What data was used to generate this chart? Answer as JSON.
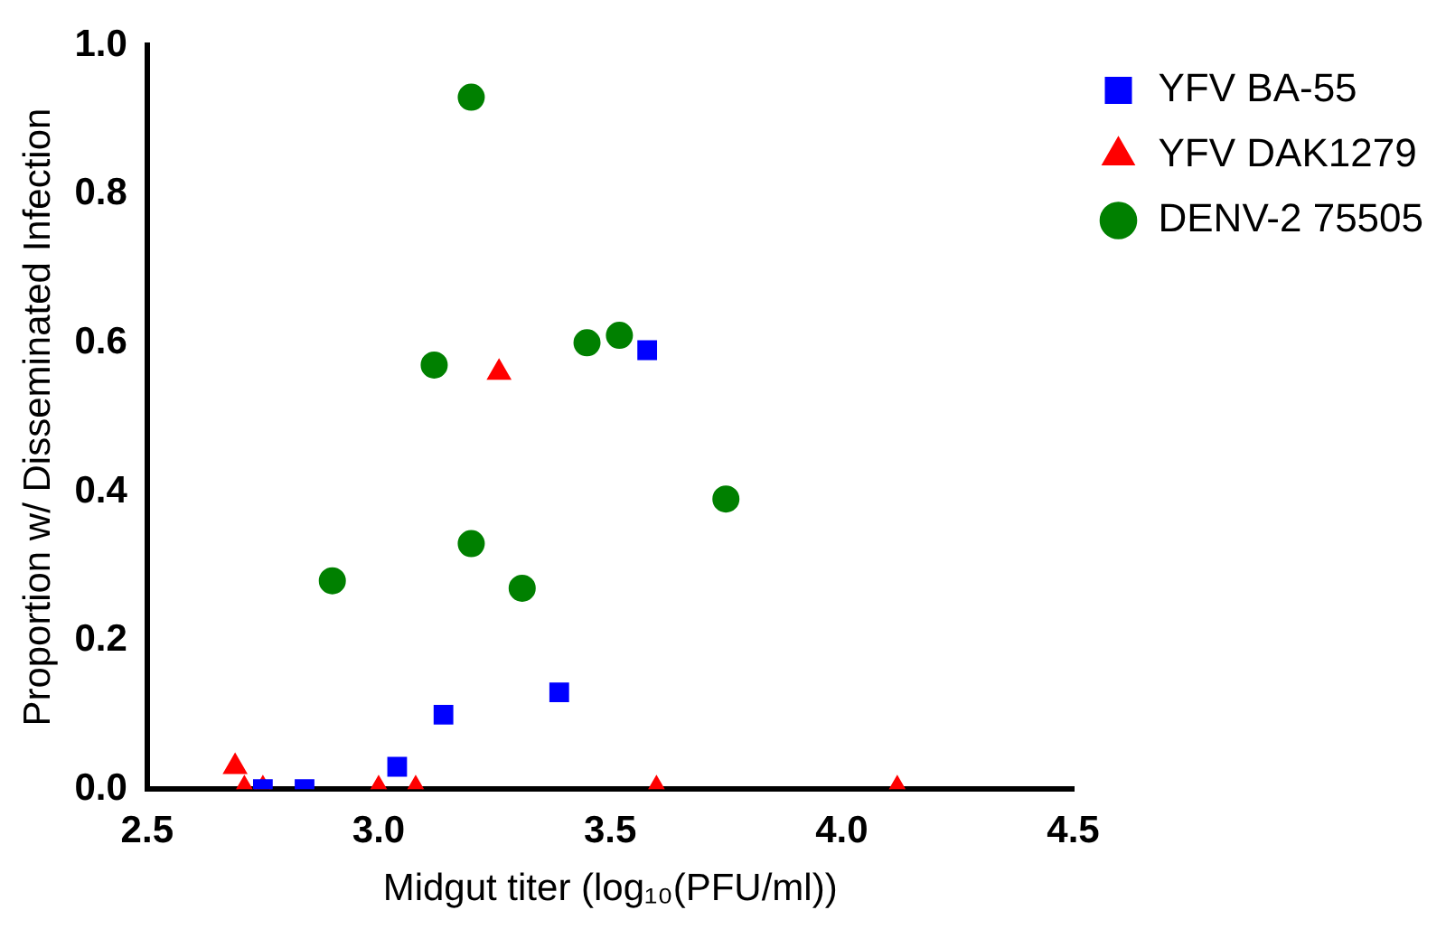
{
  "chart_data": {
    "type": "scatter",
    "xlabel": "Midgut titer (log₁₀(PFU/ml))",
    "ylabel": "Proportion w/ Disseminated Infection",
    "xlim": [
      2.5,
      4.5
    ],
    "xticks": [
      2.5,
      {
        "value": 3,
        "label": "3.0"
      },
      3.5,
      {
        "value": 4,
        "label": "4.0"
      },
      4.5
    ],
    "ylim": [
      0,
      1
    ],
    "yticks": [
      {
        "value": 0,
        "label": "0.0"
      },
      0.2,
      0.4,
      0.6,
      0.8,
      {
        "value": 1,
        "label": "1.0"
      }
    ],
    "grid": false,
    "legend": "top right",
    "series": [
      {
        "name": "YFV BA-55",
        "color": "#0000ff",
        "marker": "square",
        "x": [
          2.75,
          2.84,
          3.04,
          3.14,
          3.39,
          3.58
        ],
        "values": [
          0,
          0,
          0.03,
          0.1,
          0.13,
          0.59
        ]
      },
      {
        "name": "YFV DAK1279",
        "color": "#ff0000",
        "marker": "triangle",
        "x": [
          2.69,
          2.71,
          2.75,
          3.0,
          3.08,
          3.6,
          4.12,
          3.26
        ],
        "values": [
          0.03,
          0,
          0,
          0,
          0,
          0,
          0,
          0.56
        ]
      },
      {
        "name": "DENV-2 75505",
        "color": "#008000",
        "marker": "circle",
        "x": [
          2.9,
          3.31,
          3.12,
          3.45,
          3.52,
          3.75,
          3.2,
          3.2
        ],
        "values": [
          0.28,
          0.27,
          0.57,
          0.6,
          0.61,
          0.39,
          0.33,
          0.93
        ]
      }
    ]
  }
}
